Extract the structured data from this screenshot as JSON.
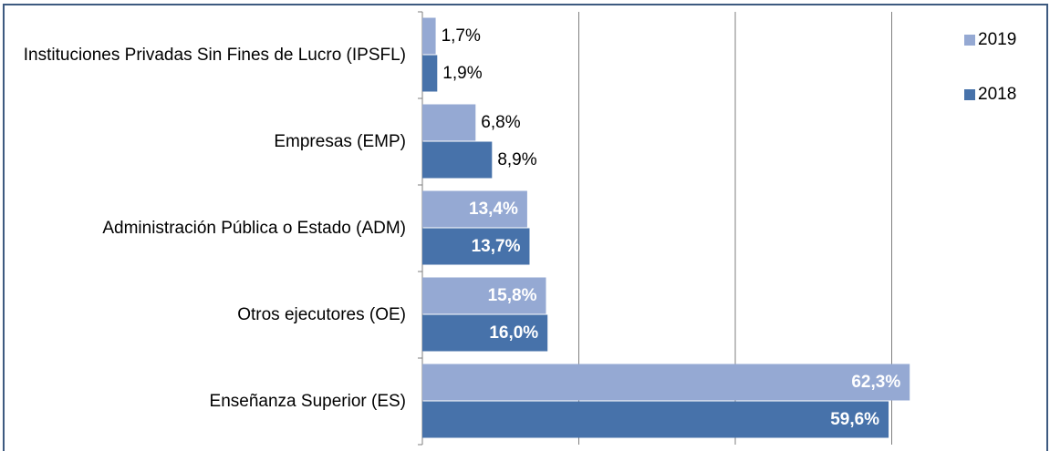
{
  "chart_data": {
    "type": "hbar",
    "categories": [
      "Instituciones Privadas Sin Fines de Lucro (IPSFL)",
      "Empresas (EMP)",
      "Administración Pública o Estado (ADM)",
      "Otros ejecutores (OE)",
      "Enseñanza Superior (ES)"
    ],
    "series": [
      {
        "name": "2019",
        "color": "#95a9d3",
        "values": [
          1.7,
          6.8,
          13.4,
          15.8,
          62.3
        ],
        "value_labels": [
          "1,7%",
          "6,8%",
          "13,4%",
          "15,8%",
          "62,3%"
        ]
      },
      {
        "name": "2018",
        "color": "#4772aa",
        "values": [
          1.9,
          8.9,
          13.7,
          16.0,
          59.6
        ],
        "value_labels": [
          "1,9%",
          "8,9%",
          "13,7%",
          "16,0%",
          "59,6%"
        ]
      }
    ],
    "xlim": [
      0,
      80
    ],
    "xticks": [
      0,
      20,
      40,
      60,
      80
    ],
    "grid": true,
    "legend": "top-right"
  }
}
